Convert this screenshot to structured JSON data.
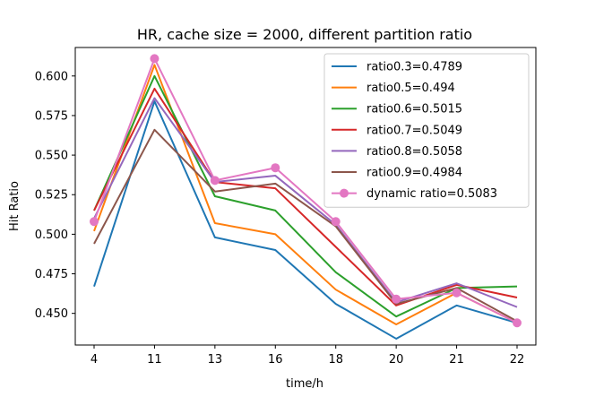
{
  "chart_data": {
    "type": "line",
    "title": "HR, cache size = 2000, different partition ratio",
    "xlabel": "time/h",
    "ylabel": "Hit Ratio",
    "categories": [
      "4",
      "11",
      "13",
      "16",
      "18",
      "20",
      "21",
      "22"
    ],
    "ylim": [
      0.43,
      0.618
    ],
    "yticks": [
      "0.450",
      "0.475",
      "0.500",
      "0.525",
      "0.550",
      "0.575",
      "0.600"
    ],
    "grid": false,
    "legend_placement": "top-right",
    "series": [
      {
        "name": "ratio0.3=0.4789",
        "color": "#1f77b4",
        "marker": false,
        "values": [
          0.467,
          0.584,
          0.498,
          0.49,
          0.456,
          0.434,
          0.455,
          0.444
        ]
      },
      {
        "name": "ratio0.5=0.494",
        "color": "#ff7f0e",
        "marker": false,
        "values": [
          0.502,
          0.607,
          0.507,
          0.5,
          0.465,
          0.443,
          0.463,
          0.444
        ]
      },
      {
        "name": "ratio0.6=0.5015",
        "color": "#2ca02c",
        "marker": false,
        "values": [
          0.515,
          0.6,
          0.524,
          0.515,
          0.476,
          0.448,
          0.466,
          0.467
        ]
      },
      {
        "name": "ratio0.7=0.5049",
        "color": "#d62728",
        "marker": false,
        "values": [
          0.515,
          0.592,
          0.533,
          0.529,
          0.492,
          0.455,
          0.468,
          0.46
        ]
      },
      {
        "name": "ratio0.8=0.5058",
        "color": "#9467bd",
        "marker": false,
        "values": [
          0.51,
          0.586,
          0.533,
          0.537,
          0.506,
          0.457,
          0.469,
          0.454
        ]
      },
      {
        "name": "ratio0.9=0.4984",
        "color": "#8c564b",
        "marker": false,
        "values": [
          0.494,
          0.566,
          0.527,
          0.532,
          0.505,
          0.456,
          0.466,
          0.445
        ]
      },
      {
        "name": "dynamic ratio=0.5083",
        "color": "#e377c2",
        "marker": true,
        "values": [
          0.508,
          0.611,
          0.534,
          0.542,
          0.508,
          0.459,
          0.463,
          0.444
        ]
      }
    ]
  }
}
